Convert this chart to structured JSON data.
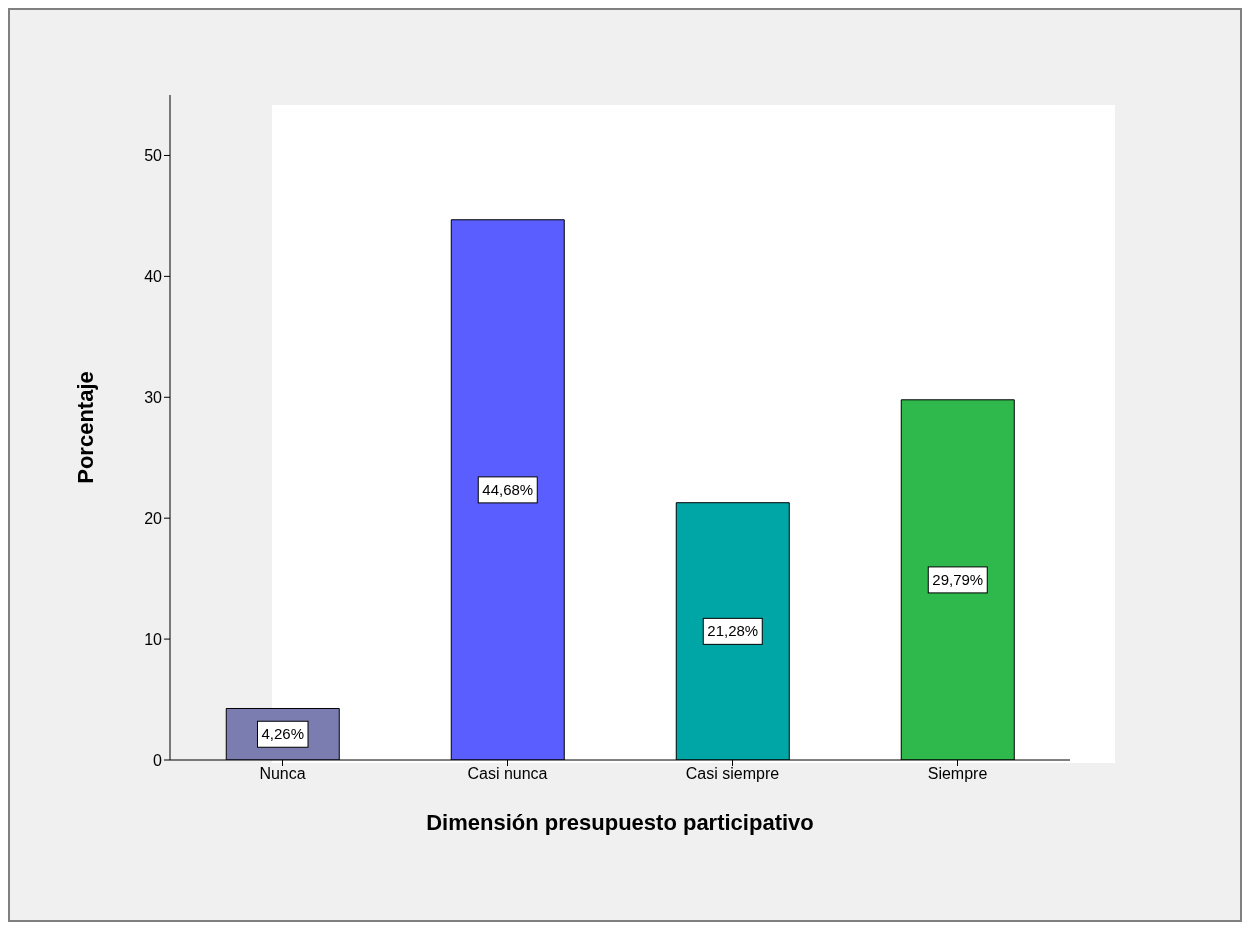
{
  "chart_data": {
    "type": "bar",
    "xlabel": "Dimensión presupuesto participativo",
    "ylabel": "Porcentaje",
    "categories": [
      "Nunca",
      "Casi nunca",
      "Casi siempre",
      "Siempre"
    ],
    "values": [
      4.26,
      44.68,
      21.28,
      29.79
    ],
    "colors": [
      "#7b7db0",
      "#5b5efe",
      "#00a6a6",
      "#2fb84c"
    ],
    "value_labels": [
      "4,26%",
      "44,68%",
      "21,28%",
      "29,79%"
    ],
    "ylim": [
      0,
      55
    ],
    "yticks": [
      0,
      10,
      20,
      30,
      40,
      50
    ],
    "grid": false,
    "legend": false
  }
}
